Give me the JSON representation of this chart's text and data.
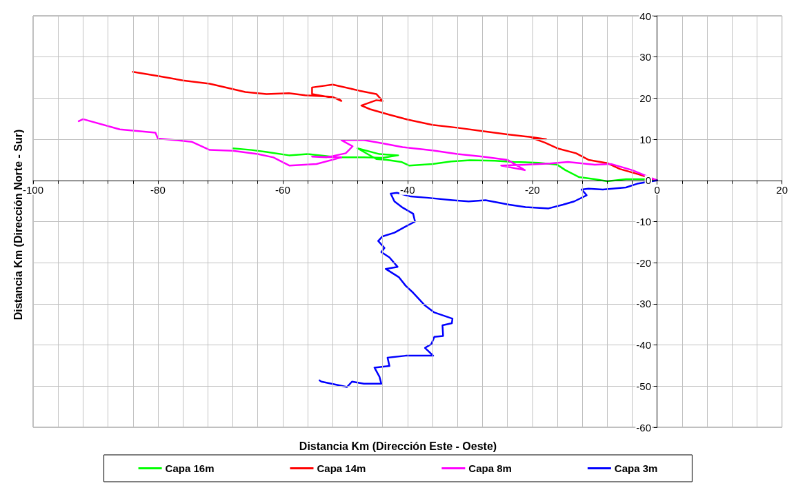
{
  "chart_data": {
    "type": "line",
    "xlabel": "Distancia Km (Dirección Este - Oeste)",
    "ylabel": "Distancia Km (Dirección Norte - Sur)",
    "xlim": [
      -100,
      20
    ],
    "ylim": [
      -60,
      40
    ],
    "xticks": [
      -100,
      {
        "value": -96,
        "label": null
      },
      {
        "value": -92,
        "label": null
      },
      {
        "value": -88,
        "label": null
      },
      {
        "value": -84,
        "label": null
      },
      -80,
      {
        "value": -76,
        "label": null
      },
      {
        "value": -72,
        "label": null
      },
      {
        "value": -68,
        "label": null
      },
      {
        "value": -64,
        "label": null
      },
      -60,
      {
        "value": -56,
        "label": null
      },
      {
        "value": -52,
        "label": null
      },
      {
        "value": -48,
        "label": null
      },
      {
        "value": -44,
        "label": null
      },
      -40,
      {
        "value": -36,
        "label": null
      },
      {
        "value": -32,
        "label": null
      },
      {
        "value": -28,
        "label": null
      },
      {
        "value": -24,
        "label": null
      },
      -20,
      {
        "value": -16,
        "label": null
      },
      {
        "value": -12,
        "label": null
      },
      {
        "value": -8,
        "label": null
      },
      {
        "value": -4,
        "label": null
      },
      0,
      {
        "value": 4,
        "label": null
      },
      {
        "value": 8,
        "label": null
      },
      {
        "value": 12,
        "label": null
      },
      {
        "value": 16,
        "label": null
      },
      20
    ],
    "yticks": [
      -60,
      -50,
      -40,
      -30,
      -20,
      -10,
      0,
      10,
      20,
      30,
      40
    ],
    "grid": true,
    "legend": "bottom",
    "marker": "none",
    "line_style": "solid",
    "series": [
      {
        "name": "Capa 16m",
        "color": "#00ff00",
        "x": [
          0,
          -2,
          -5,
          -8,
          -10,
          -12.5,
          -14.7,
          -16,
          -19,
          -23,
          -26,
          -30,
          -33,
          -36,
          -39.7,
          -41,
          -43.3,
          -45,
          -48,
          -44.5,
          -41.5,
          -44,
          -47,
          -51,
          -54,
          -56,
          -59,
          -62.6,
          -65,
          -68
        ],
        "values": [
          0,
          0.3,
          0.3,
          -0.2,
          0.3,
          0.8,
          2.5,
          3.8,
          4.3,
          4.5,
          4.8,
          4.9,
          4.6,
          4,
          3.6,
          4.5,
          5,
          5.2,
          7.8,
          6.4,
          6.1,
          5.5,
          5.6,
          5.6,
          6.1,
          6.4,
          6.1,
          6.9,
          7.4,
          7.8
        ]
      },
      {
        "name": "Capa 14m",
        "color": "#ff0000",
        "x": [
          0,
          -3,
          -6,
          -8,
          -11,
          -13,
          -16,
          -18,
          -20,
          -17.8,
          -20.5,
          -24,
          -28,
          -32,
          -36,
          -40,
          -43,
          -46,
          -47.4,
          -45,
          -44,
          -45,
          -47.7,
          -52,
          -55.3,
          -55.3,
          -51,
          -50.6,
          -52,
          -56.4,
          -59,
          -62.6,
          -66,
          -71.7,
          -76,
          -80,
          -84
        ],
        "values": [
          0,
          1.5,
          2.8,
          4.2,
          5,
          6.6,
          7.8,
          9.2,
          10.3,
          10,
          10.6,
          11.2,
          12,
          12.8,
          13.5,
          14.8,
          16,
          17.3,
          18.2,
          19.5,
          19.3,
          21,
          21.8,
          23.3,
          22.6,
          21,
          19.8,
          19.3,
          20.3,
          20.7,
          21.2,
          21,
          21.5,
          23.5,
          24.3,
          25.4,
          26.4
        ]
      },
      {
        "name": "Capa 8m",
        "color": "#ff00ff",
        "x": [
          0,
          -4,
          -7.4,
          -10,
          -14.3,
          -17.2,
          -21,
          -25,
          -21.2,
          -24,
          -28,
          -32,
          -36,
          -40.8,
          -44,
          -47,
          -50.6,
          -48.8,
          -49.9,
          -53,
          -55.3,
          -50.6,
          -54.6,
          -58.9,
          -61.5,
          -64,
          -68,
          -71.7,
          -74.6,
          -80,
          -80.4,
          -86.1,
          -92,
          -92.7
        ],
        "values": [
          0,
          2.5,
          4,
          3.8,
          4.5,
          4.1,
          3.8,
          3.6,
          2.5,
          5,
          5.8,
          6.4,
          7.3,
          8.1,
          9,
          9.8,
          9.8,
          8.3,
          6.6,
          5.6,
          5.8,
          5.6,
          4,
          3.6,
          5.6,
          6.4,
          7.2,
          7.4,
          9.4,
          10.2,
          11.6,
          12.4,
          14.9,
          14.4
        ]
      },
      {
        "name": "Capa 3m",
        "color": "#0000ff",
        "x": [
          0,
          -3.2,
          -5,
          -8.7,
          -11,
          -12.1,
          -11.3,
          -13.3,
          -15.1,
          -17.4,
          -21.1,
          -23.7,
          -27.5,
          -30.2,
          -32.8,
          -36.9,
          -39.5,
          -41.7,
          -42.7,
          -42.1,
          -40.9,
          -39.1,
          -38.8,
          -40.3,
          -42.1,
          -44,
          -44.7,
          -43.7,
          -44.2,
          -42.9,
          -41.6,
          -43.5,
          -41.4,
          -40.3,
          -39.1,
          -37.2,
          -35.7,
          -32.8,
          -32.9,
          -34.4,
          -34.3,
          -35.7,
          -36.2,
          -37.2,
          -35.9,
          -40.3,
          -43.2,
          -42.9,
          -45.3,
          -44.5,
          -44.2,
          -47,
          -48.9,
          -49.7,
          -53.8,
          -54.1
        ],
        "values": [
          0,
          -0.8,
          -1.7,
          -2.2,
          -2,
          -2.2,
          -3.6,
          -5.1,
          -5.9,
          -6.8,
          -6.5,
          -5.9,
          -4.8,
          -5.1,
          -4.8,
          -4.2,
          -3.9,
          -3,
          -3.2,
          -5.1,
          -6.5,
          -8.1,
          -10,
          -11.2,
          -12.7,
          -13.6,
          -14.7,
          -16.4,
          -17.4,
          -18.7,
          -21,
          -21.5,
          -23.5,
          -25.6,
          -27.3,
          -30.4,
          -32.1,
          -33.6,
          -34.7,
          -35.2,
          -37.8,
          -38,
          -39.8,
          -40.7,
          -42.6,
          -42.6,
          -43.1,
          -45.1,
          -45.5,
          -47.7,
          -49.4,
          -49.4,
          -48.9,
          -50.2,
          -48.9,
          -48.6
        ]
      }
    ]
  }
}
